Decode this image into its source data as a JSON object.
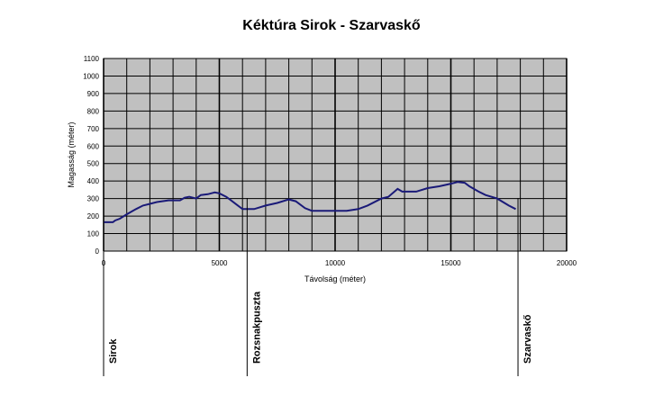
{
  "chart_data": {
    "type": "line",
    "title": "Kéktúra Sirok - Szarvaskő",
    "xlabel": "Távolság (méter)",
    "ylabel": "Magasság (méter)",
    "xlim": [
      0,
      20000
    ],
    "ylim": [
      0,
      1100
    ],
    "xticks": [
      0,
      5000,
      10000,
      15000,
      20000
    ],
    "yticks": [
      0,
      100,
      200,
      300,
      400,
      500,
      600,
      700,
      800,
      900,
      1000,
      1100
    ],
    "grid": true,
    "line_color": "#1a1a78",
    "plot_background": "#c0c0c0",
    "series": [
      {
        "x": [
          0,
          400,
          500,
          700,
          1000,
          1400,
          1700,
          2000,
          2300,
          2800,
          3300,
          3500,
          3700,
          4000,
          4200,
          4500,
          4800,
          5000,
          5300,
          5500,
          5800,
          6000,
          6500,
          7000,
          7500,
          8000,
          8300,
          8700,
          9000,
          9500,
          10000,
          10500,
          11000,
          11400,
          12000,
          12300,
          12700,
          12900,
          13500,
          14000,
          14500,
          15000,
          15300,
          15600,
          15800,
          16200,
          16500,
          17000,
          17500,
          17800
        ],
        "y": [
          165,
          165,
          175,
          185,
          210,
          240,
          260,
          270,
          280,
          290,
          290,
          305,
          310,
          300,
          320,
          325,
          335,
          330,
          310,
          290,
          260,
          240,
          240,
          260,
          275,
          295,
          285,
          245,
          230,
          230,
          230,
          230,
          240,
          260,
          300,
          310,
          355,
          340,
          340,
          360,
          370,
          385,
          395,
          390,
          370,
          340,
          320,
          300,
          260,
          240
        ]
      }
    ],
    "annotations": [
      {
        "label": "Sirok",
        "x": 0
      },
      {
        "label": "Rozsnakpuszta",
        "x": 6200
      },
      {
        "label": "Szarvaskő",
        "x": 17900
      }
    ]
  }
}
